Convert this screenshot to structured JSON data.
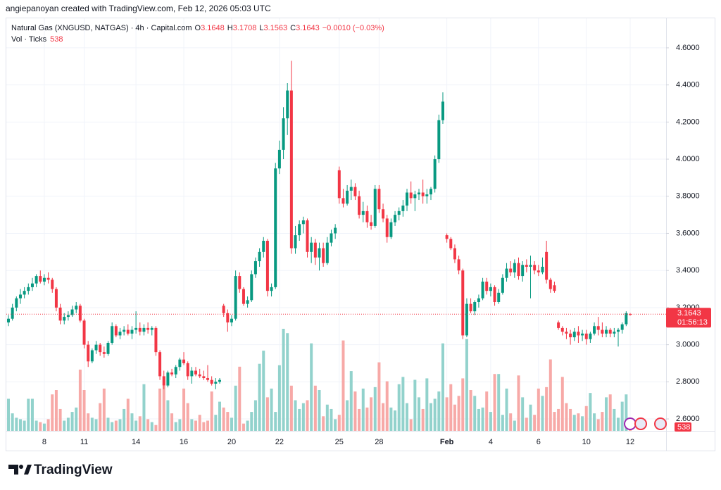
{
  "header": {
    "attribution": "angiepanoyan created with TradingView.com, Feb 12, 2026 05:03 UTC"
  },
  "footer": {
    "logo": "TradingView"
  },
  "chart_data": {
    "type": "candlestick",
    "legend": {
      "symbol": "Natural Gas (XNGUSD, NATGAS) · 4h · Capital.com",
      "ohlc": [
        {
          "key": "O",
          "value": "3.1648"
        },
        {
          "key": "H",
          "value": "3.1708"
        },
        {
          "key": "L",
          "value": "3.1563"
        },
        {
          "key": "C",
          "value": "3.1643"
        }
      ],
      "change": "−0.0010 (−0.03%)",
      "volume_label": "Vol · Ticks"
    },
    "up_color": "#089981",
    "down_color": "#f23645",
    "volume_up_color": "#92d2cc",
    "volume_down_color": "#f7a9a7",
    "grid": true,
    "ylim": [
      2.5356,
      4.7591
    ],
    "yticks": [
      {
        "value": 2.6,
        "label": "2.6000"
      },
      {
        "value": 2.8,
        "label": "2.8000"
      },
      {
        "value": 3.0,
        "label": "3.0000"
      },
      {
        "value": 3.2,
        "label": "3.2000"
      },
      {
        "value": 3.4,
        "label": "3.4000"
      },
      {
        "value": 3.6,
        "label": "3.6000"
      },
      {
        "value": 3.8,
        "label": "3.8000"
      },
      {
        "value": 4.0,
        "label": "4.0000"
      },
      {
        "value": 4.2,
        "label": "4.2000"
      },
      {
        "value": 4.4,
        "label": "4.4000"
      },
      {
        "value": 4.6,
        "label": "4.6000"
      }
    ],
    "price_line": {
      "value": 3.1643,
      "countdown": "01:56:13"
    },
    "categories": [
      null,
      null,
      null,
      null,
      null,
      null,
      null,
      null,
      null,
      "8",
      null,
      null,
      null,
      null,
      null,
      null,
      null,
      null,
      null,
      "11",
      null,
      null,
      null,
      null,
      null,
      null,
      null,
      null,
      null,
      null,
      null,
      null,
      "14",
      null,
      null,
      null,
      null,
      null,
      null,
      null,
      null,
      null,
      null,
      null,
      "16",
      null,
      null,
      null,
      null,
      null,
      null,
      null,
      null,
      null,
      null,
      null,
      "20",
      null,
      null,
      null,
      null,
      null,
      null,
      null,
      null,
      null,
      null,
      null,
      "22",
      null,
      null,
      null,
      null,
      null,
      null,
      null,
      null,
      null,
      null,
      null,
      null,
      null,
      null,
      "25",
      null,
      null,
      null,
      null,
      null,
      null,
      null,
      null,
      null,
      "28",
      null,
      null,
      null,
      null,
      null,
      null,
      null,
      null,
      null,
      null,
      null,
      null,
      null,
      null,
      null,
      null,
      "Feb",
      null,
      null,
      null,
      null,
      null,
      null,
      null,
      null,
      null,
      null,
      "4",
      null,
      null,
      null,
      null,
      null,
      null,
      null,
      null,
      null,
      null,
      null,
      "6",
      null,
      null,
      null,
      null,
      null,
      null,
      null,
      null,
      null,
      null,
      null,
      "10",
      null,
      null,
      null,
      null,
      null,
      null,
      null,
      null,
      null,
      null,
      "12"
    ],
    "ohlc": [
      [
        3.12,
        3.16,
        3.1,
        3.14
      ],
      [
        3.14,
        3.22,
        3.13,
        3.2
      ],
      [
        3.2,
        3.26,
        3.18,
        3.25
      ],
      [
        3.25,
        3.3,
        3.22,
        3.27
      ],
      [
        3.27,
        3.31,
        3.25,
        3.29
      ],
      [
        3.29,
        3.33,
        3.27,
        3.31
      ],
      [
        3.31,
        3.36,
        3.29,
        3.33
      ],
      [
        3.33,
        3.38,
        3.31,
        3.37
      ],
      [
        3.37,
        3.4,
        3.33,
        3.34
      ],
      [
        3.34,
        3.38,
        3.32,
        3.36
      ],
      [
        3.36,
        3.39,
        3.33,
        3.35
      ],
      [
        3.35,
        3.36,
        3.28,
        3.3
      ],
      [
        3.3,
        3.31,
        3.18,
        3.2
      ],
      [
        3.2,
        3.22,
        3.11,
        3.13
      ],
      [
        3.13,
        3.17,
        3.11,
        3.15
      ],
      [
        3.15,
        3.18,
        3.13,
        3.16
      ],
      [
        3.16,
        3.21,
        3.15,
        3.19
      ],
      [
        3.19,
        3.23,
        3.17,
        3.21
      ],
      [
        3.21,
        3.22,
        3.12,
        3.13
      ],
      [
        3.13,
        3.14,
        2.98,
        3.0
      ],
      [
        3.0,
        3.02,
        2.88,
        2.91
      ],
      [
        2.91,
        2.98,
        2.9,
        2.97
      ],
      [
        2.97,
        3.02,
        2.95,
        3.0
      ],
      [
        3.0,
        3.01,
        2.94,
        2.96
      ],
      [
        2.96,
        2.99,
        2.93,
        2.95
      ],
      [
        2.95,
        3.02,
        2.94,
        3.01
      ],
      [
        3.01,
        3.12,
        3.0,
        3.1
      ],
      [
        3.1,
        3.11,
        3.04,
        3.05
      ],
      [
        3.05,
        3.09,
        3.03,
        3.07
      ],
      [
        3.07,
        3.1,
        3.05,
        3.08
      ],
      [
        3.08,
        3.11,
        3.05,
        3.06
      ],
      [
        3.06,
        3.1,
        3.03,
        3.08
      ],
      [
        3.08,
        3.18,
        3.06,
        3.09
      ],
      [
        3.09,
        3.12,
        3.05,
        3.07
      ],
      [
        3.07,
        3.11,
        3.05,
        3.09
      ],
      [
        3.09,
        3.12,
        3.06,
        3.08
      ],
      [
        3.08,
        3.1,
        3.05,
        3.09
      ],
      [
        3.09,
        3.1,
        2.94,
        2.96
      ],
      [
        2.96,
        2.97,
        2.81,
        2.83
      ],
      [
        2.83,
        2.86,
        2.76,
        2.78
      ],
      [
        2.78,
        2.86,
        2.77,
        2.85
      ],
      [
        2.85,
        2.87,
        2.83,
        2.84
      ],
      [
        2.84,
        2.89,
        2.82,
        2.88
      ],
      [
        2.88,
        2.93,
        2.86,
        2.92
      ],
      [
        2.92,
        2.96,
        2.89,
        2.9
      ],
      [
        2.9,
        2.91,
        2.81,
        2.83
      ],
      [
        2.83,
        2.88,
        2.79,
        2.86
      ],
      [
        2.86,
        2.88,
        2.83,
        2.84
      ],
      [
        2.84,
        2.87,
        2.82,
        2.83
      ],
      [
        2.83,
        2.86,
        2.81,
        2.82
      ],
      [
        2.82,
        2.89,
        2.8,
        2.81
      ],
      [
        2.81,
        2.83,
        2.78,
        2.79
      ],
      [
        2.79,
        2.82,
        2.76,
        2.8
      ],
      [
        2.8,
        2.82,
        2.79,
        2.81
      ],
      [
        3.21,
        3.22,
        3.15,
        3.17
      ],
      [
        3.17,
        3.19,
        3.07,
        3.12
      ],
      [
        3.12,
        3.16,
        3.1,
        3.14
      ],
      [
        3.14,
        3.4,
        3.13,
        3.37
      ],
      [
        3.37,
        3.39,
        3.28,
        3.3
      ],
      [
        3.3,
        3.31,
        3.21,
        3.22
      ],
      [
        3.22,
        3.26,
        3.2,
        3.24
      ],
      [
        3.24,
        3.4,
        3.23,
        3.38
      ],
      [
        3.38,
        3.47,
        3.36,
        3.45
      ],
      [
        3.45,
        3.52,
        3.42,
        3.5
      ],
      [
        3.5,
        3.58,
        3.47,
        3.56
      ],
      [
        3.56,
        3.57,
        3.26,
        3.29
      ],
      [
        3.29,
        3.33,
        3.26,
        3.31
      ],
      [
        3.31,
        3.98,
        3.3,
        3.95
      ],
      [
        3.95,
        4.1,
        3.92,
        4.05
      ],
      [
        4.05,
        4.28,
        4.0,
        4.22
      ],
      [
        4.22,
        4.41,
        4.13,
        4.37
      ],
      [
        4.37,
        4.53,
        3.49,
        3.52
      ],
      [
        3.52,
        3.64,
        3.49,
        3.59
      ],
      [
        3.59,
        3.67,
        3.56,
        3.65
      ],
      [
        3.65,
        3.69,
        3.6,
        3.67
      ],
      [
        3.67,
        3.68,
        3.47,
        3.5
      ],
      [
        3.5,
        3.58,
        3.44,
        3.55
      ],
      [
        3.55,
        3.57,
        3.43,
        3.47
      ],
      [
        3.47,
        3.55,
        3.4,
        3.52
      ],
      [
        3.52,
        3.55,
        3.42,
        3.44
      ],
      [
        3.44,
        3.58,
        3.43,
        3.55
      ],
      [
        3.55,
        3.62,
        3.53,
        3.6
      ],
      [
        3.6,
        3.65,
        3.57,
        3.63
      ],
      [
        3.94,
        3.96,
        3.76,
        3.79
      ],
      [
        3.79,
        3.84,
        3.74,
        3.76
      ],
      [
        3.76,
        3.86,
        3.75,
        3.83
      ],
      [
        3.83,
        3.89,
        3.78,
        3.85
      ],
      [
        3.85,
        3.87,
        3.78,
        3.8
      ],
      [
        3.8,
        3.83,
        3.68,
        3.7
      ],
      [
        3.7,
        3.77,
        3.66,
        3.72
      ],
      [
        3.72,
        3.75,
        3.63,
        3.66
      ],
      [
        3.66,
        3.7,
        3.62,
        3.64
      ],
      [
        3.64,
        3.86,
        3.63,
        3.84
      ],
      [
        3.84,
        3.86,
        3.71,
        3.73
      ],
      [
        3.73,
        3.76,
        3.66,
        3.68
      ],
      [
        3.68,
        3.7,
        3.55,
        3.58
      ],
      [
        3.58,
        3.68,
        3.57,
        3.66
      ],
      [
        3.66,
        3.72,
        3.64,
        3.7
      ],
      [
        3.7,
        3.74,
        3.67,
        3.72
      ],
      [
        3.72,
        3.78,
        3.69,
        3.75
      ],
      [
        3.75,
        3.84,
        3.72,
        3.82
      ],
      [
        3.82,
        3.88,
        3.76,
        3.79
      ],
      [
        3.79,
        3.83,
        3.72,
        3.81
      ],
      [
        3.81,
        3.84,
        3.78,
        3.82
      ],
      [
        3.82,
        3.89,
        3.76,
        3.8
      ],
      [
        3.8,
        3.84,
        3.76,
        3.81
      ],
      [
        3.81,
        3.85,
        3.78,
        3.84
      ],
      [
        3.84,
        4.02,
        3.82,
        4.0
      ],
      [
        4.0,
        4.24,
        3.98,
        4.21
      ],
      [
        4.21,
        4.36,
        4.19,
        4.31
      ],
      [
        3.59,
        3.6,
        3.55,
        3.57
      ],
      [
        3.57,
        3.58,
        3.51,
        3.52
      ],
      [
        3.52,
        3.54,
        3.44,
        3.46
      ],
      [
        3.46,
        3.48,
        3.38,
        3.4
      ],
      [
        3.4,
        3.41,
        3.03,
        3.05
      ],
      [
        3.05,
        3.25,
        3.04,
        3.22
      ],
      [
        3.22,
        3.25,
        3.17,
        3.18
      ],
      [
        3.18,
        3.24,
        3.16,
        3.23
      ],
      [
        3.23,
        3.27,
        3.2,
        3.25
      ],
      [
        3.25,
        3.36,
        3.24,
        3.34
      ],
      [
        3.34,
        3.36,
        3.27,
        3.29
      ],
      [
        3.29,
        3.33,
        3.26,
        3.31
      ],
      [
        3.31,
        3.32,
        3.21,
        3.23
      ],
      [
        3.23,
        3.3,
        3.22,
        3.28
      ],
      [
        3.28,
        3.38,
        3.27,
        3.36
      ],
      [
        3.36,
        3.44,
        3.34,
        3.41
      ],
      [
        3.41,
        3.45,
        3.37,
        3.39
      ],
      [
        3.39,
        3.46,
        3.36,
        3.44
      ],
      [
        3.44,
        3.47,
        3.35,
        3.37
      ],
      [
        3.37,
        3.45,
        3.34,
        3.43
      ],
      [
        3.43,
        3.46,
        3.39,
        3.42
      ],
      [
        3.42,
        3.48,
        3.25,
        3.43
      ],
      [
        3.43,
        3.45,
        3.38,
        3.4
      ],
      [
        3.4,
        3.43,
        3.37,
        3.39
      ],
      [
        3.39,
        3.47,
        3.38,
        3.42
      ],
      [
        3.5,
        3.56,
        3.33,
        3.35
      ],
      [
        3.35,
        3.36,
        3.28,
        3.3
      ],
      [
        3.32,
        3.34,
        3.28,
        3.29
      ],
      [
        3.12,
        3.13,
        3.08,
        3.09
      ],
      [
        3.09,
        3.1,
        3.05,
        3.07
      ],
      [
        3.07,
        3.09,
        3.03,
        3.06
      ],
      [
        3.06,
        3.08,
        3.0,
        3.04
      ],
      [
        3.04,
        3.09,
        3.02,
        3.07
      ],
      [
        3.07,
        3.1,
        3.01,
        3.05
      ],
      [
        3.05,
        3.08,
        3.02,
        3.06
      ],
      [
        3.06,
        3.08,
        3.0,
        3.03
      ],
      [
        3.03,
        3.07,
        3.01,
        3.06
      ],
      [
        3.06,
        3.12,
        3.05,
        3.1
      ],
      [
        3.1,
        3.15,
        3.05,
        3.08
      ],
      [
        3.08,
        3.12,
        3.04,
        3.06
      ],
      [
        3.06,
        3.1,
        3.04,
        3.08
      ],
      [
        3.08,
        3.09,
        3.04,
        3.06
      ],
      [
        3.06,
        3.09,
        3.04,
        3.07
      ],
      [
        3.07,
        3.09,
        2.99,
        3.08
      ],
      [
        3.08,
        3.12,
        3.06,
        3.11
      ],
      [
        3.11,
        3.18,
        3.1,
        3.17
      ],
      [
        3.1648,
        3.1708,
        3.1563,
        3.1643
      ]
    ],
    "volume": [
      2200,
      1200,
      900,
      800,
      700,
      2200,
      2200,
      700,
      600,
      500,
      800,
      2500,
      2800,
      1500,
      700,
      900,
      1300,
      1600,
      4200,
      2800,
      1200,
      900,
      800,
      1900,
      2900,
      900,
      600,
      700,
      800,
      1500,
      2200,
      1200,
      700,
      1000,
      3200,
      800,
      600,
      400,
      2900,
      3100,
      2100,
      1200,
      600,
      800,
      2900,
      1900,
      800,
      700,
      1100,
      600,
      700,
      2700,
      1100,
      2000,
      1600,
      1300,
      900,
      3100,
      4400,
      500,
      700,
      1300,
      2100,
      4600,
      5500,
      2300,
      2900,
      1300,
      4500,
      7000,
      6700,
      3100,
      2100,
      1500,
      1900,
      2100,
      6000,
      3100,
      2800,
      1000,
      1800,
      1500,
      800,
      1100,
      6200,
      2100,
      4100,
      2700,
      1500,
      2900,
      1600,
      2300,
      3000,
      4700,
      1900,
      3400,
      1600,
      1400,
      3200,
      3700,
      1900,
      800,
      3500,
      2300,
      1500,
      3600,
      1900,
      2200,
      2700,
      6000,
      2300,
      3200,
      1800,
      2400,
      3600,
      6300,
      2800,
      2400,
      1500,
      1600,
      2700,
      1300,
      3900,
      3900,
      1100,
      2900,
      1200,
      700,
      3800,
      2300,
      900,
      1800,
      1100,
      2900,
      2400,
      3000,
      4900,
      1300,
      1500,
      3700,
      1900,
      1500,
      1100,
      1200,
      1000,
      1700,
      2600,
      1200,
      800,
      1300,
      2300,
      2500,
      1500,
      900,
      2000,
      2500,
      538
    ]
  }
}
